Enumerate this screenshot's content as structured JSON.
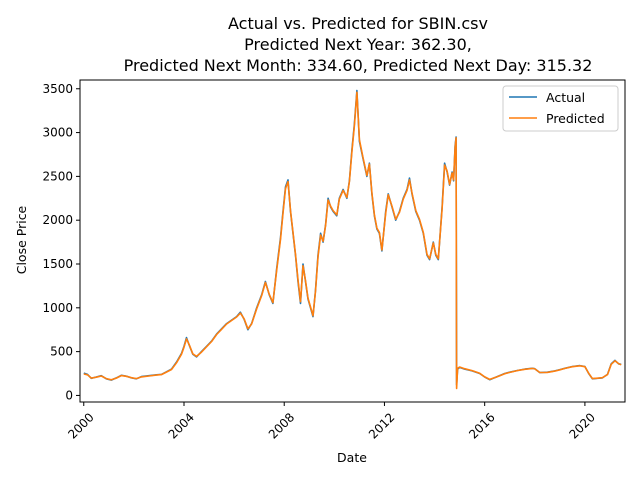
{
  "chart_data": {
    "type": "line",
    "title_lines": [
      "Actual vs. Predicted for SBIN.csv",
      "Predicted Next Year: 362.30,",
      "Predicted Next Month: 334.60, Predicted Next Day: 315.32"
    ],
    "xlabel": "Date",
    "ylabel": "Close Price",
    "xlim": [
      1999.85,
      2021.6
    ],
    "ylim": [
      -75,
      3600
    ],
    "x_ticks": [
      2000,
      2004,
      2008,
      2012,
      2016,
      2020
    ],
    "x_tick_labels": [
      "2000",
      "2004",
      "2008",
      "2012",
      "2016",
      "2020"
    ],
    "y_ticks": [
      0,
      500,
      1000,
      1500,
      2000,
      2500,
      3000,
      3500
    ],
    "y_tick_labels": [
      "0",
      "500",
      "1000",
      "1500",
      "2000",
      "2500",
      "3000",
      "3500"
    ],
    "legend_position": "top-right",
    "series": [
      {
        "name": "Actual",
        "color": "#1f77b4",
        "points": [
          [
            2000.0,
            255
          ],
          [
            2000.15,
            240
          ],
          [
            2000.3,
            195
          ],
          [
            2000.5,
            210
          ],
          [
            2000.7,
            225
          ],
          [
            2000.9,
            190
          ],
          [
            2001.1,
            175
          ],
          [
            2001.3,
            200
          ],
          [
            2001.5,
            230
          ],
          [
            2001.7,
            220
          ],
          [
            2001.9,
            200
          ],
          [
            2002.1,
            190
          ],
          [
            2002.3,
            215
          ],
          [
            2002.6,
            225
          ],
          [
            2002.9,
            235
          ],
          [
            2003.1,
            240
          ],
          [
            2003.3,
            270
          ],
          [
            2003.5,
            300
          ],
          [
            2003.7,
            380
          ],
          [
            2003.9,
            480
          ],
          [
            2004.0,
            560
          ],
          [
            2004.1,
            660
          ],
          [
            2004.2,
            580
          ],
          [
            2004.35,
            470
          ],
          [
            2004.5,
            440
          ],
          [
            2004.7,
            500
          ],
          [
            2004.9,
            560
          ],
          [
            2005.1,
            620
          ],
          [
            2005.3,
            700
          ],
          [
            2005.5,
            760
          ],
          [
            2005.7,
            820
          ],
          [
            2005.9,
            860
          ],
          [
            2006.1,
            900
          ],
          [
            2006.25,
            950
          ],
          [
            2006.4,
            870
          ],
          [
            2006.55,
            750
          ],
          [
            2006.7,
            820
          ],
          [
            2006.9,
            1000
          ],
          [
            2007.1,
            1150
          ],
          [
            2007.25,
            1300
          ],
          [
            2007.4,
            1150
          ],
          [
            2007.55,
            1050
          ],
          [
            2007.7,
            1450
          ],
          [
            2007.85,
            1800
          ],
          [
            2007.95,
            2100
          ],
          [
            2008.05,
            2380
          ],
          [
            2008.15,
            2460
          ],
          [
            2008.25,
            2100
          ],
          [
            2008.35,
            1850
          ],
          [
            2008.45,
            1600
          ],
          [
            2008.55,
            1300
          ],
          [
            2008.65,
            1050
          ],
          [
            2008.75,
            1500
          ],
          [
            2008.85,
            1300
          ],
          [
            2008.95,
            1100
          ],
          [
            2009.05,
            1000
          ],
          [
            2009.15,
            900
          ],
          [
            2009.25,
            1200
          ],
          [
            2009.35,
            1600
          ],
          [
            2009.45,
            1850
          ],
          [
            2009.55,
            1750
          ],
          [
            2009.65,
            1950
          ],
          [
            2009.75,
            2250
          ],
          [
            2009.85,
            2150
          ],
          [
            2009.95,
            2100
          ],
          [
            2010.1,
            2050
          ],
          [
            2010.2,
            2250
          ],
          [
            2010.35,
            2350
          ],
          [
            2010.5,
            2250
          ],
          [
            2010.6,
            2450
          ],
          [
            2010.7,
            2800
          ],
          [
            2010.8,
            3100
          ],
          [
            2010.9,
            3480
          ],
          [
            2011.0,
            2900
          ],
          [
            2011.15,
            2700
          ],
          [
            2011.3,
            2500
          ],
          [
            2011.4,
            2650
          ],
          [
            2011.5,
            2300
          ],
          [
            2011.6,
            2050
          ],
          [
            2011.7,
            1900
          ],
          [
            2011.8,
            1850
          ],
          [
            2011.9,
            1650
          ],
          [
            2012.05,
            2100
          ],
          [
            2012.15,
            2300
          ],
          [
            2012.3,
            2150
          ],
          [
            2012.45,
            2000
          ],
          [
            2012.6,
            2100
          ],
          [
            2012.75,
            2250
          ],
          [
            2012.9,
            2350
          ],
          [
            2013.0,
            2480
          ],
          [
            2013.1,
            2300
          ],
          [
            2013.25,
            2100
          ],
          [
            2013.4,
            2000
          ],
          [
            2013.55,
            1850
          ],
          [
            2013.7,
            1600
          ],
          [
            2013.8,
            1550
          ],
          [
            2013.95,
            1750
          ],
          [
            2014.05,
            1600
          ],
          [
            2014.15,
            1550
          ],
          [
            2014.3,
            2150
          ],
          [
            2014.4,
            2650
          ],
          [
            2014.5,
            2550
          ],
          [
            2014.6,
            2400
          ],
          [
            2014.7,
            2550
          ],
          [
            2014.76,
            2450
          ],
          [
            2014.82,
            2850
          ],
          [
            2014.86,
            2950
          ],
          [
            2014.88,
            120
          ],
          [
            2014.92,
            300
          ],
          [
            2015.0,
            320
          ],
          [
            2015.2,
            300
          ],
          [
            2015.5,
            280
          ],
          [
            2015.8,
            250
          ],
          [
            2016.0,
            210
          ],
          [
            2016.2,
            180
          ],
          [
            2016.5,
            215
          ],
          [
            2016.8,
            250
          ],
          [
            2017.0,
            265
          ],
          [
            2017.3,
            285
          ],
          [
            2017.6,
            300
          ],
          [
            2017.9,
            310
          ],
          [
            2018.0,
            305
          ],
          [
            2018.2,
            260
          ],
          [
            2018.5,
            265
          ],
          [
            2018.8,
            280
          ],
          [
            2019.0,
            295
          ],
          [
            2019.2,
            310
          ],
          [
            2019.5,
            330
          ],
          [
            2019.8,
            340
          ],
          [
            2020.0,
            330
          ],
          [
            2020.15,
            250
          ],
          [
            2020.3,
            190
          ],
          [
            2020.5,
            195
          ],
          [
            2020.7,
            200
          ],
          [
            2020.9,
            240
          ],
          [
            2021.05,
            360
          ],
          [
            2021.2,
            400
          ],
          [
            2021.35,
            360
          ],
          [
            2021.45,
            355
          ]
        ]
      },
      {
        "name": "Predicted",
        "color": "#ff7f0e",
        "points": [
          [
            2000.0,
            245
          ],
          [
            2000.15,
            235
          ],
          [
            2000.3,
            198
          ],
          [
            2000.5,
            208
          ],
          [
            2000.7,
            222
          ],
          [
            2000.9,
            192
          ],
          [
            2001.1,
            178
          ],
          [
            2001.3,
            198
          ],
          [
            2001.5,
            226
          ],
          [
            2001.7,
            218
          ],
          [
            2001.9,
            202
          ],
          [
            2002.1,
            192
          ],
          [
            2002.3,
            212
          ],
          [
            2002.6,
            222
          ],
          [
            2002.9,
            232
          ],
          [
            2003.1,
            238
          ],
          [
            2003.3,
            266
          ],
          [
            2003.5,
            296
          ],
          [
            2003.7,
            372
          ],
          [
            2003.9,
            470
          ],
          [
            2004.0,
            550
          ],
          [
            2004.1,
            645
          ],
          [
            2004.2,
            585
          ],
          [
            2004.35,
            475
          ],
          [
            2004.5,
            445
          ],
          [
            2004.7,
            495
          ],
          [
            2004.9,
            555
          ],
          [
            2005.1,
            615
          ],
          [
            2005.3,
            695
          ],
          [
            2005.5,
            755
          ],
          [
            2005.7,
            815
          ],
          [
            2005.9,
            855
          ],
          [
            2006.1,
            895
          ],
          [
            2006.25,
            940
          ],
          [
            2006.4,
            875
          ],
          [
            2006.55,
            760
          ],
          [
            2006.7,
            815
          ],
          [
            2006.9,
            990
          ],
          [
            2007.1,
            1140
          ],
          [
            2007.25,
            1290
          ],
          [
            2007.4,
            1155
          ],
          [
            2007.55,
            1060
          ],
          [
            2007.7,
            1430
          ],
          [
            2007.85,
            1780
          ],
          [
            2007.95,
            2080
          ],
          [
            2008.05,
            2360
          ],
          [
            2008.15,
            2440
          ],
          [
            2008.25,
            2110
          ],
          [
            2008.35,
            1860
          ],
          [
            2008.45,
            1610
          ],
          [
            2008.55,
            1320
          ],
          [
            2008.65,
            1070
          ],
          [
            2008.75,
            1480
          ],
          [
            2008.85,
            1310
          ],
          [
            2008.95,
            1110
          ],
          [
            2009.05,
            1010
          ],
          [
            2009.15,
            910
          ],
          [
            2009.25,
            1190
          ],
          [
            2009.35,
            1580
          ],
          [
            2009.45,
            1830
          ],
          [
            2009.55,
            1760
          ],
          [
            2009.65,
            1940
          ],
          [
            2009.75,
            2230
          ],
          [
            2009.85,
            2160
          ],
          [
            2009.95,
            2110
          ],
          [
            2010.1,
            2060
          ],
          [
            2010.2,
            2240
          ],
          [
            2010.35,
            2340
          ],
          [
            2010.5,
            2260
          ],
          [
            2010.6,
            2440
          ],
          [
            2010.7,
            2780
          ],
          [
            2010.8,
            3080
          ],
          [
            2010.9,
            3460
          ],
          [
            2011.0,
            2920
          ],
          [
            2011.15,
            2710
          ],
          [
            2011.3,
            2510
          ],
          [
            2011.4,
            2640
          ],
          [
            2011.5,
            2310
          ],
          [
            2011.6,
            2060
          ],
          [
            2011.7,
            1910
          ],
          [
            2011.8,
            1860
          ],
          [
            2011.9,
            1660
          ],
          [
            2012.05,
            2080
          ],
          [
            2012.15,
            2290
          ],
          [
            2012.3,
            2160
          ],
          [
            2012.45,
            2010
          ],
          [
            2012.6,
            2090
          ],
          [
            2012.75,
            2240
          ],
          [
            2012.9,
            2340
          ],
          [
            2013.0,
            2460
          ],
          [
            2013.1,
            2310
          ],
          [
            2013.25,
            2110
          ],
          [
            2013.4,
            2010
          ],
          [
            2013.55,
            1860
          ],
          [
            2013.7,
            1610
          ],
          [
            2013.8,
            1560
          ],
          [
            2013.95,
            1740
          ],
          [
            2014.05,
            1610
          ],
          [
            2014.15,
            1560
          ],
          [
            2014.3,
            2130
          ],
          [
            2014.4,
            2630
          ],
          [
            2014.5,
            2560
          ],
          [
            2014.6,
            2410
          ],
          [
            2014.7,
            2540
          ],
          [
            2014.76,
            2460
          ],
          [
            2014.82,
            2830
          ],
          [
            2014.86,
            2940
          ],
          [
            2014.88,
            80
          ],
          [
            2014.92,
            310
          ],
          [
            2015.0,
            325
          ],
          [
            2015.2,
            305
          ],
          [
            2015.5,
            283
          ],
          [
            2015.8,
            253
          ],
          [
            2016.0,
            212
          ],
          [
            2016.2,
            183
          ],
          [
            2016.5,
            213
          ],
          [
            2016.8,
            248
          ],
          [
            2017.0,
            263
          ],
          [
            2017.3,
            283
          ],
          [
            2017.6,
            298
          ],
          [
            2017.9,
            308
          ],
          [
            2018.0,
            303
          ],
          [
            2018.2,
            262
          ],
          [
            2018.5,
            263
          ],
          [
            2018.8,
            278
          ],
          [
            2019.0,
            293
          ],
          [
            2019.2,
            308
          ],
          [
            2019.5,
            328
          ],
          [
            2019.8,
            338
          ],
          [
            2020.0,
            328
          ],
          [
            2020.15,
            252
          ],
          [
            2020.3,
            192
          ],
          [
            2020.5,
            197
          ],
          [
            2020.7,
            202
          ],
          [
            2020.9,
            238
          ],
          [
            2021.05,
            355
          ],
          [
            2021.2,
            395
          ],
          [
            2021.35,
            362
          ],
          [
            2021.45,
            350
          ]
        ]
      }
    ]
  }
}
